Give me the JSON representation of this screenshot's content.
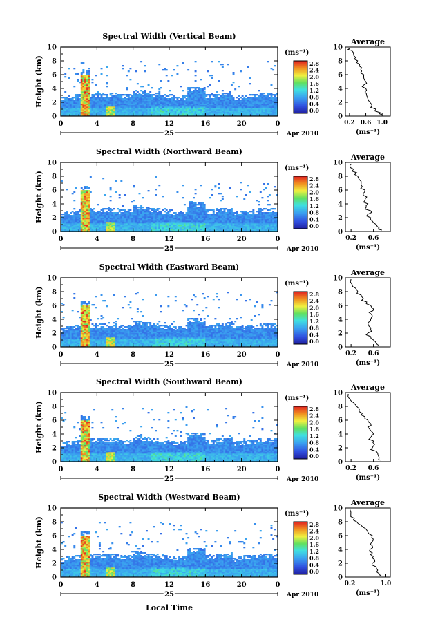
{
  "chart_data": [
    {
      "type": "heatmap",
      "title": "Spectral Width (Vertical Beam)",
      "ylabel": "Height (km)",
      "ylim": [
        0,
        10
      ],
      "xlim": [
        0,
        24
      ],
      "x_ticks": [
        "0",
        "4",
        "8",
        "12",
        "16",
        "20",
        "0"
      ],
      "y_ticks": [
        "0",
        "2",
        "4",
        "6",
        "8",
        "10"
      ],
      "date_label": "25",
      "month_label": "Apr 2010",
      "colorbar": {
        "unit": "(ms⁻¹)",
        "ticks": [
          "2.8",
          "2.4",
          "2.0",
          "1.6",
          "1.2",
          "0.8",
          "0.4",
          "0.0"
        ],
        "range": [
          0,
          2.8
        ]
      },
      "profile": {
        "title": "Average",
        "xlabel": "(ms⁻¹)",
        "xlim": [
          0.1,
          1.2
        ],
        "xticks": [
          "0.2",
          "0.6",
          "1.0"
        ],
        "xtick_values": [
          0.2,
          0.6,
          1.0
        ],
        "points": [
          [
            0.2,
            9.8
          ],
          [
            0.25,
            9.5
          ],
          [
            0.3,
            9.0
          ],
          [
            0.35,
            8.5
          ],
          [
            0.4,
            8.0
          ],
          [
            0.45,
            7.5
          ],
          [
            0.5,
            7.0
          ],
          [
            0.5,
            6.5
          ],
          [
            0.55,
            6.0
          ],
          [
            0.55,
            5.5
          ],
          [
            0.6,
            5.0
          ],
          [
            0.55,
            4.5
          ],
          [
            0.6,
            4.0
          ],
          [
            0.58,
            3.5
          ],
          [
            0.62,
            3.0
          ],
          [
            0.65,
            2.5
          ],
          [
            0.7,
            2.0
          ],
          [
            0.75,
            1.5
          ],
          [
            0.85,
            1.0
          ],
          [
            0.95,
            0.5
          ],
          [
            1.0,
            0.2
          ]
        ]
      }
    },
    {
      "type": "heatmap",
      "title": "Spectral Width (Northward Beam)",
      "ylabel": "Height (km)",
      "ylim": [
        0,
        10
      ],
      "xlim": [
        0,
        24
      ],
      "x_ticks": [
        "0",
        "4",
        "8",
        "12",
        "16",
        "20",
        "0"
      ],
      "y_ticks": [
        "0",
        "2",
        "4",
        "6",
        "8",
        "10"
      ],
      "date_label": "25",
      "month_label": "Apr 2010",
      "colorbar": {
        "unit": "(ms⁻¹)",
        "ticks": [
          "2.8",
          "2.4",
          "2.0",
          "1.6",
          "1.2",
          "0.8",
          "0.4",
          "0.0"
        ],
        "range": [
          0,
          2.8
        ]
      },
      "profile": {
        "title": "Average",
        "xlabel": "(ms⁻¹)",
        "xlim": [
          0.1,
          0.9
        ],
        "xticks": [
          "0.2",
          "0.6"
        ],
        "xtick_values": [
          0.2,
          0.6
        ],
        "points": [
          [
            0.22,
            9.8
          ],
          [
            0.18,
            9.5
          ],
          [
            0.25,
            9.0
          ],
          [
            0.3,
            8.5
          ],
          [
            0.32,
            8.0
          ],
          [
            0.35,
            7.5
          ],
          [
            0.38,
            7.0
          ],
          [
            0.4,
            6.5
          ],
          [
            0.45,
            6.0
          ],
          [
            0.42,
            5.5
          ],
          [
            0.48,
            5.0
          ],
          [
            0.45,
            4.5
          ],
          [
            0.5,
            4.0
          ],
          [
            0.47,
            3.5
          ],
          [
            0.55,
            3.0
          ],
          [
            0.5,
            2.5
          ],
          [
            0.55,
            2.0
          ],
          [
            0.58,
            1.5
          ],
          [
            0.65,
            1.0
          ],
          [
            0.7,
            0.5
          ],
          [
            0.75,
            0.2
          ]
        ]
      }
    },
    {
      "type": "heatmap",
      "title": "Spectral Width (Eastward Beam)",
      "ylabel": "Height (km)",
      "ylim": [
        0,
        10
      ],
      "xlim": [
        0,
        24
      ],
      "x_ticks": [
        "0",
        "4",
        "8",
        "12",
        "16",
        "20",
        "0"
      ],
      "y_ticks": [
        "0",
        "2",
        "4",
        "6",
        "8",
        "10"
      ],
      "date_label": "25",
      "month_label": "Apr 2010",
      "colorbar": {
        "unit": "(ms⁻¹)",
        "ticks": [
          "2.8",
          "2.4",
          "2.0",
          "1.6",
          "1.2",
          "0.8",
          "0.4",
          "0.0"
        ],
        "range": [
          0,
          2.8
        ]
      },
      "profile": {
        "title": "Average",
        "xlabel": "(ms⁻¹)",
        "xlim": [
          0.1,
          0.9
        ],
        "xticks": [
          "0.2",
          "0.6"
        ],
        "xtick_values": [
          0.2,
          0.6
        ],
        "points": [
          [
            0.2,
            9.8
          ],
          [
            0.22,
            9.0
          ],
          [
            0.28,
            8.5
          ],
          [
            0.32,
            8.0
          ],
          [
            0.38,
            7.5
          ],
          [
            0.42,
            7.0
          ],
          [
            0.48,
            6.5
          ],
          [
            0.55,
            6.0
          ],
          [
            0.6,
            5.5
          ],
          [
            0.52,
            5.0
          ],
          [
            0.58,
            4.5
          ],
          [
            0.55,
            4.0
          ],
          [
            0.5,
            3.5
          ],
          [
            0.52,
            3.0
          ],
          [
            0.55,
            2.5
          ],
          [
            0.5,
            2.0
          ],
          [
            0.55,
            1.5
          ],
          [
            0.6,
            1.0
          ],
          [
            0.65,
            0.5
          ],
          [
            0.7,
            0.2
          ]
        ]
      }
    },
    {
      "type": "heatmap",
      "title": "Spectral Width (Southward Beam)",
      "ylabel": "Height (km)",
      "ylim": [
        0,
        10
      ],
      "xlim": [
        0,
        24
      ],
      "x_ticks": [
        "0",
        "4",
        "8",
        "12",
        "16",
        "20",
        "0"
      ],
      "y_ticks": [
        "0",
        "2",
        "4",
        "6",
        "8",
        "10"
      ],
      "date_label": "25",
      "month_label": "Apr 2010",
      "colorbar": {
        "unit": "(ms⁻¹)",
        "ticks": [
          "2.8",
          "2.4",
          "2.0",
          "1.6",
          "1.2",
          "0.8",
          "0.4",
          "0.0"
        ],
        "range": [
          0,
          2.8
        ]
      },
      "profile": {
        "title": "Average",
        "xlabel": "(ms⁻¹)",
        "xlim": [
          0.1,
          0.9
        ],
        "xticks": [
          "0.2",
          "0.6"
        ],
        "xtick_values": [
          0.2,
          0.6
        ],
        "points": [
          [
            0.15,
            9.8
          ],
          [
            0.18,
            9.0
          ],
          [
            0.25,
            8.5
          ],
          [
            0.3,
            8.0
          ],
          [
            0.35,
            7.5
          ],
          [
            0.4,
            7.0
          ],
          [
            0.45,
            6.5
          ],
          [
            0.5,
            6.0
          ],
          [
            0.55,
            5.5
          ],
          [
            0.5,
            5.0
          ],
          [
            0.55,
            4.5
          ],
          [
            0.6,
            4.0
          ],
          [
            0.55,
            3.5
          ],
          [
            0.6,
            3.0
          ],
          [
            0.62,
            2.5
          ],
          [
            0.58,
            2.0
          ],
          [
            0.65,
            1.5
          ],
          [
            0.68,
            1.0
          ],
          [
            0.7,
            0.5
          ],
          [
            0.72,
            0.2
          ]
        ]
      }
    },
    {
      "type": "heatmap",
      "title": "Spectral Width (Westward Beam)",
      "ylabel": "Height (km)",
      "xlabel": "Local Time",
      "ylim": [
        0,
        10
      ],
      "xlim": [
        0,
        24
      ],
      "x_ticks": [
        "0",
        "4",
        "8",
        "12",
        "16",
        "20",
        "0"
      ],
      "y_ticks": [
        "0",
        "2",
        "4",
        "6",
        "8",
        "10"
      ],
      "date_label": "25",
      "month_label": "Apr 2010",
      "colorbar": {
        "unit": "(ms⁻¹)",
        "ticks": [
          "2.8",
          "2.4",
          "2.0",
          "1.6",
          "1.2",
          "0.8",
          "0.4",
          "0.0"
        ],
        "range": [
          0,
          2.8
        ]
      },
      "profile": {
        "title": "Average",
        "xlabel": "(ms⁻¹)",
        "xlim": [
          0.1,
          1.1
        ],
        "xticks": [
          "0.2",
          "1.0"
        ],
        "xtick_values": [
          0.2,
          1.0
        ],
        "points": [
          [
            0.2,
            9.8
          ],
          [
            0.22,
            9.0
          ],
          [
            0.3,
            8.5
          ],
          [
            0.35,
            8.0
          ],
          [
            0.45,
            7.5
          ],
          [
            0.55,
            7.0
          ],
          [
            0.6,
            6.5
          ],
          [
            0.7,
            6.0
          ],
          [
            0.72,
            5.5
          ],
          [
            0.68,
            5.0
          ],
          [
            0.7,
            4.5
          ],
          [
            0.65,
            4.0
          ],
          [
            0.7,
            3.5
          ],
          [
            0.72,
            3.0
          ],
          [
            0.75,
            2.5
          ],
          [
            0.7,
            2.0
          ],
          [
            0.78,
            1.5
          ],
          [
            0.82,
            1.0
          ],
          [
            0.85,
            0.5
          ],
          [
            0.9,
            0.2
          ]
        ]
      }
    }
  ]
}
